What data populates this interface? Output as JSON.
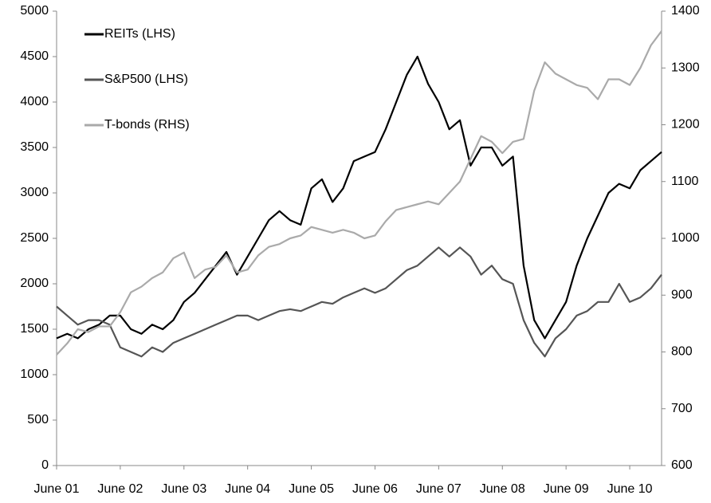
{
  "chart_data": {
    "type": "line",
    "categories": [
      "June 01",
      null,
      null,
      null,
      null,
      null,
      "June 02",
      null,
      null,
      null,
      null,
      null,
      "June 03",
      null,
      null,
      null,
      null,
      null,
      "June 04",
      null,
      null,
      null,
      null,
      null,
      "June 05",
      null,
      null,
      null,
      null,
      null,
      "June 06",
      null,
      null,
      null,
      null,
      null,
      "June 07",
      null,
      null,
      null,
      null,
      null,
      "June 08",
      null,
      null,
      null,
      null,
      null,
      "June 09",
      null,
      null,
      null,
      null,
      null,
      "June 10",
      null,
      null,
      null
    ],
    "series": [
      {
        "name": "REITs (LHS)",
        "color": "#000000",
        "values": [
          1400,
          1450,
          1400,
          1500,
          1550,
          1650,
          1650,
          1500,
          1450,
          1550,
          1500,
          1600,
          1800,
          1900,
          2050,
          2200,
          2350,
          2100,
          2300,
          2500,
          2700,
          2800,
          2700,
          2650,
          3050,
          3150,
          2900,
          3050,
          3350,
          3400,
          3450,
          3700,
          4000,
          4300,
          4500,
          4200,
          4000,
          3700,
          3800,
          3300,
          3500,
          3500,
          3300,
          3400,
          2200,
          1600,
          1400,
          1600,
          1800,
          2200,
          2500,
          2750,
          3000,
          3100,
          3050,
          3250,
          3350,
          3450
        ]
      },
      {
        "name": "S&P500 (LHS)",
        "color": "#555555",
        "values": [
          1750,
          1650,
          1550,
          1600,
          1600,
          1550,
          1300,
          1250,
          1200,
          1300,
          1250,
          1350,
          1400,
          1450,
          1500,
          1550,
          1600,
          1650,
          1650,
          1600,
          1650,
          1700,
          1720,
          1700,
          1750,
          1800,
          1780,
          1850,
          1900,
          1950,
          1900,
          1950,
          2050,
          2150,
          2200,
          2300,
          2400,
          2300,
          2400,
          2300,
          2100,
          2200,
          2050,
          2000,
          1600,
          1350,
          1200,
          1400,
          1500,
          1650,
          1700,
          1800,
          1800,
          2000,
          1800,
          1850,
          1950,
          2100
        ]
      },
      {
        "name": "T-bonds (RHS)",
        "color": "#aaaaaa",
        "axis": "y2",
        "values": [
          795,
          815,
          840,
          835,
          845,
          845,
          870,
          905,
          915,
          930,
          940,
          965,
          975,
          930,
          945,
          950,
          970,
          940,
          945,
          970,
          985,
          990,
          1000,
          1005,
          1020,
          1015,
          1010,
          1015,
          1010,
          1000,
          1005,
          1030,
          1050,
          1055,
          1060,
          1065,
          1060,
          1080,
          1100,
          1140,
          1180,
          1170,
          1150,
          1170,
          1175,
          1260,
          1310,
          1290,
          1280,
          1270,
          1265,
          1245,
          1280,
          1280,
          1270,
          1300,
          1340,
          1365
        ]
      }
    ],
    "ylim": [
      0,
      5000
    ],
    "yticks": [
      0,
      500,
      1000,
      1500,
      2000,
      2500,
      3000,
      3500,
      4000,
      4500,
      5000
    ],
    "y2lim": [
      600,
      1400
    ],
    "y2ticks": [
      600,
      700,
      800,
      900,
      1000,
      1100,
      1200,
      1300,
      1400
    ],
    "grid": false,
    "legend": "upper left"
  }
}
